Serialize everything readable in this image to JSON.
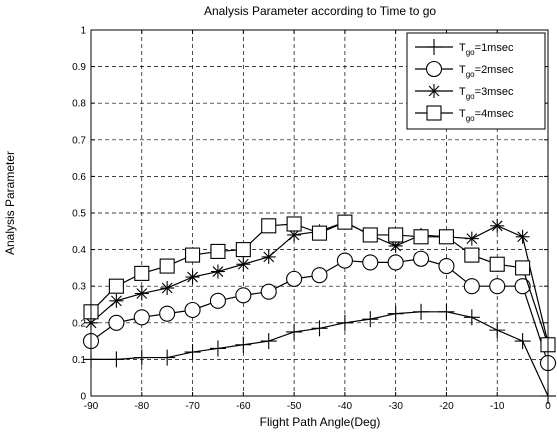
{
  "chart_data": {
    "type": "line",
    "title": "Analysis Parameter according to Time to go",
    "xlabel": "Flight Path Angle(Deg)",
    "ylabel": "Analysis Parameter",
    "xlim": [
      -90,
      0
    ],
    "ylim": [
      0,
      1
    ],
    "xticks": [
      -90,
      -80,
      -70,
      -60,
      -50,
      -40,
      -30,
      -20,
      -10,
      0
    ],
    "yticks": [
      0,
      0.1,
      0.2,
      0.3,
      0.4,
      0.5,
      0.6,
      0.7,
      0.8,
      0.9,
      1
    ],
    "grid": true,
    "legend_position": "top-right",
    "series": [
      {
        "name": "T_go=1msec",
        "legend": {
          "base": "T",
          "sub": "go",
          "rest": "=1msec"
        },
        "marker": "plus",
        "x": [
          -90,
          -85,
          -80,
          -75,
          -70,
          -65,
          -60,
          -55,
          -50,
          -45,
          -40,
          -35,
          -30,
          -25,
          -20,
          -15,
          -10,
          -5,
          0
        ],
        "y": [
          0.1,
          0.1,
          0.105,
          0.105,
          0.12,
          0.13,
          0.14,
          0.15,
          0.175,
          0.185,
          0.2,
          0.21,
          0.225,
          0.23,
          0.23,
          0.215,
          0.18,
          0.15,
          0.0
        ]
      },
      {
        "name": "T_go=2msec",
        "legend": {
          "base": "T",
          "sub": "go",
          "rest": "=2msec"
        },
        "marker": "circle",
        "x": [
          -90,
          -85,
          -80,
          -75,
          -70,
          -65,
          -60,
          -55,
          -50,
          -45,
          -40,
          -35,
          -30,
          -25,
          -20,
          -15,
          -10,
          -5,
          0
        ],
        "y": [
          0.15,
          0.2,
          0.215,
          0.225,
          0.235,
          0.26,
          0.275,
          0.285,
          0.32,
          0.33,
          0.37,
          0.365,
          0.365,
          0.375,
          0.355,
          0.3,
          0.3,
          0.3,
          0.09
        ]
      },
      {
        "name": "T_go=3msec",
        "legend": {
          "base": "T",
          "sub": "go",
          "rest": "=3msec"
        },
        "marker": "star",
        "x": [
          -90,
          -85,
          -80,
          -75,
          -70,
          -65,
          -60,
          -55,
          -50,
          -45,
          -40,
          -35,
          -30,
          -25,
          -20,
          -15,
          -10,
          -5,
          0
        ],
        "y": [
          0.2,
          0.26,
          0.28,
          0.295,
          0.325,
          0.34,
          0.36,
          0.38,
          0.44,
          0.45,
          0.475,
          0.44,
          0.41,
          0.44,
          0.435,
          0.43,
          0.465,
          0.435,
          0.145
        ]
      },
      {
        "name": "T_go=4msec",
        "legend": {
          "base": "T",
          "sub": "go",
          "rest": "=4msec"
        },
        "marker": "square",
        "x": [
          -90,
          -85,
          -80,
          -75,
          -70,
          -65,
          -60,
          -55,
          -50,
          -45,
          -40,
          -35,
          -30,
          -25,
          -20,
          -15,
          -10,
          -5,
          0
        ],
        "y": [
          0.23,
          0.3,
          0.335,
          0.355,
          0.385,
          0.395,
          0.4,
          0.465,
          0.47,
          0.445,
          0.475,
          0.44,
          0.44,
          0.435,
          0.435,
          0.385,
          0.36,
          0.35,
          0.14
        ]
      }
    ]
  }
}
